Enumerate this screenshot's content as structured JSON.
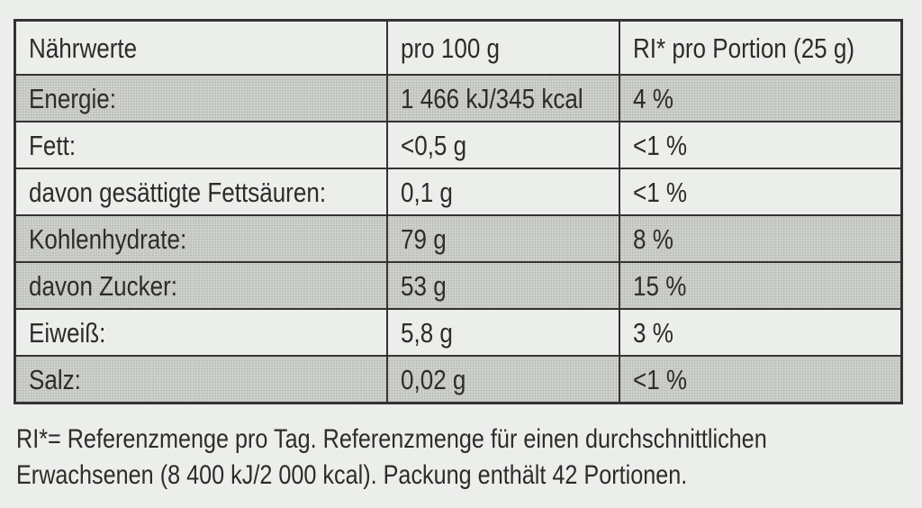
{
  "table": {
    "headers": [
      "Nährwerte",
      "pro 100 g",
      "RI* pro Portion (25 g)"
    ],
    "rows": [
      {
        "label": "Energie:",
        "per100": "1 466 kJ/345 kcal",
        "ri": "4 %",
        "shaded": true
      },
      {
        "label": "Fett:",
        "per100": "<0,5 g",
        "ri": "<1 %",
        "shaded": false
      },
      {
        "label": "davon gesättigte Fettsäuren:",
        "per100": "0,1 g",
        "ri": "<1 %",
        "shaded": false
      },
      {
        "label": "Kohlenhydrate:",
        "per100": "79 g",
        "ri": "8 %",
        "shaded": true
      },
      {
        "label": "davon Zucker:",
        "per100": "53 g",
        "ri": "15 %",
        "shaded": true
      },
      {
        "label": "Eiweiß:",
        "per100": "5,8 g",
        "ri": "3 %",
        "shaded": false
      },
      {
        "label": "Salz:",
        "per100": "0,02 g",
        "ri": "<1 %",
        "shaded": true
      }
    ]
  },
  "footnote": {
    "line1": "RI*= Referenzmenge pro Tag. Referenzmenge für einen durchschnittlichen",
    "line2": "Erwachsenen (8 400 kJ/2 000 kcal).  Packung enthält 42 Portionen."
  }
}
